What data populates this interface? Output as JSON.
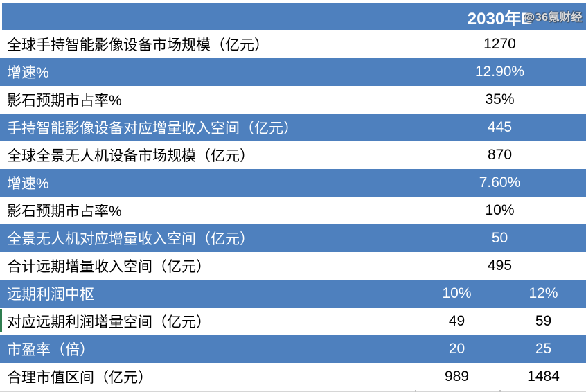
{
  "watermark": {
    "text": "@36氪财经"
  },
  "colors": {
    "row_blue": "#4E80BE",
    "row_white": "#FFFFFF",
    "text_on_blue": "#FFFFFF",
    "text_on_white": "#000000",
    "green_marker": "#2E7D4F"
  },
  "table": {
    "title_column_header": "",
    "rows": [
      {
        "label": "",
        "values": [
          "2030年E"
        ],
        "style": "blue",
        "header": true
      },
      {
        "label": "全球手持智能影像设备市场规模（亿元）",
        "values": [
          "1270"
        ],
        "style": "white"
      },
      {
        "label": "增速%",
        "values": [
          "12.90%"
        ],
        "style": "blue"
      },
      {
        "label": "影石预期市占率%",
        "values": [
          "35%"
        ],
        "style": "white"
      },
      {
        "label": "手持智能影像设备对应增量收入空间（亿元）",
        "values": [
          "445"
        ],
        "style": "blue"
      },
      {
        "label": "全球全景无人机设备市场规模（亿元）",
        "values": [
          "870"
        ],
        "style": "white"
      },
      {
        "label": "增速%",
        "values": [
          "7.60%"
        ],
        "style": "blue"
      },
      {
        "label": "影石预期市占率%",
        "values": [
          "10%"
        ],
        "style": "white"
      },
      {
        "label": "全景无人机对应增量收入空间（亿元）",
        "values": [
          "50"
        ],
        "style": "blue"
      },
      {
        "label": "合计远期增量收入空间（亿元）",
        "values": [
          "495"
        ],
        "style": "white"
      },
      {
        "label": "远期利润中枢",
        "values": [
          "10%",
          "12%"
        ],
        "style": "blue"
      },
      {
        "label": "对应远期利润增量空间（亿元）",
        "values": [
          "49",
          "59"
        ],
        "style": "white",
        "green_edge": true
      },
      {
        "label": "市盈率（倍）",
        "values": [
          "20",
          "25"
        ],
        "style": "blue"
      },
      {
        "label": "合理市值区间（亿元）",
        "values": [
          "989",
          "1484"
        ],
        "style": "white"
      }
    ]
  }
}
